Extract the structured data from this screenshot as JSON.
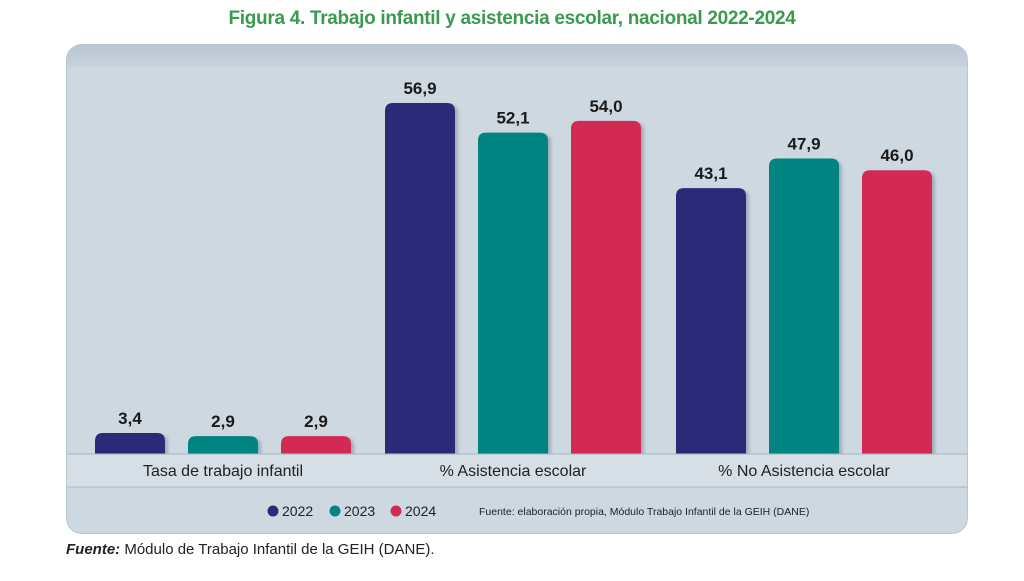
{
  "figure": {
    "title_lead": "Figura 4.",
    "title_rest": " Trabajo infantil y asistencia escolar, nacional 2022-2024"
  },
  "source": {
    "label": "Fuente:",
    "text": " Módulo de Trabajo Infantil de la GEIH (DANE)."
  },
  "chart_note": "Fuente: elaboración propia, Módulo Trabajo Infantil de la GEIH (DANE)",
  "colors": {
    "2022": "#2b2a78",
    "2023": "#058481",
    "2024": "#d22a55",
    "panel": "#ced8e1",
    "title": "#3a9a4e"
  },
  "chart_data": {
    "type": "bar",
    "categories": [
      "Tasa de trabajo infantil",
      "% Asistencia escolar",
      "% No Asistencia escolar"
    ],
    "series": [
      {
        "name": "2022",
        "values": [
          3.4,
          56.9,
          43.1
        ],
        "labels": [
          "3,4",
          "56,9",
          "43,1"
        ],
        "color": "#2b2a78"
      },
      {
        "name": "2023",
        "values": [
          2.9,
          52.1,
          47.9
        ],
        "labels": [
          "2,9",
          "52,1",
          "47,9"
        ],
        "color": "#058481"
      },
      {
        "name": "2024",
        "values": [
          2.9,
          54.0,
          46.0
        ],
        "labels": [
          "2,9",
          "54,0",
          "46,0"
        ],
        "color": "#d22a55"
      }
    ],
    "ylim": [
      0,
      56.9
    ],
    "legend_position": "bottom",
    "grid": false
  }
}
